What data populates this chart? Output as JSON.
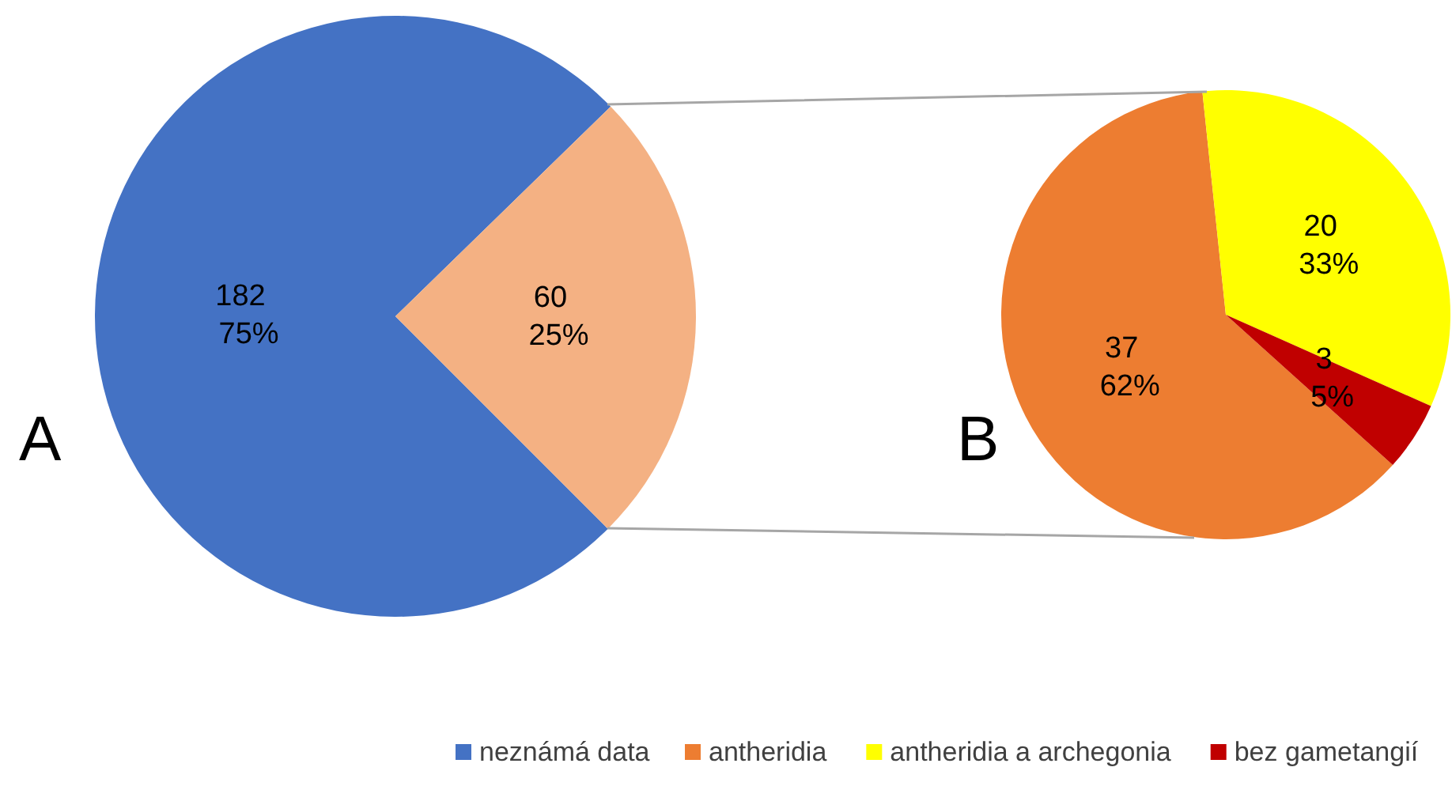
{
  "chart_data": [
    {
      "type": "pie",
      "categories": [
        "neznámá data",
        null
      ],
      "values": [
        182,
        60
      ],
      "colors": [
        "#4472c4",
        "#f4b183"
      ],
      "value_labels": [
        "182\n  75%",
        "60\n  25%"
      ],
      "annotations": [
        "A"
      ],
      "legend": "bottom"
    },
    {
      "type": "pie",
      "categories": [
        "antheridia",
        "antheridia a archegonia",
        "bez gametangií"
      ],
      "values": [
        37,
        20,
        3
      ],
      "colors": [
        "#ed7d31",
        "#ffff00",
        "#c00000"
      ],
      "value_labels": [
        "37\n  62%",
        "20\n  33%",
        "3\n  5%"
      ],
      "annotations": [
        "B"
      ],
      "legend": "bottom"
    }
  ]
}
